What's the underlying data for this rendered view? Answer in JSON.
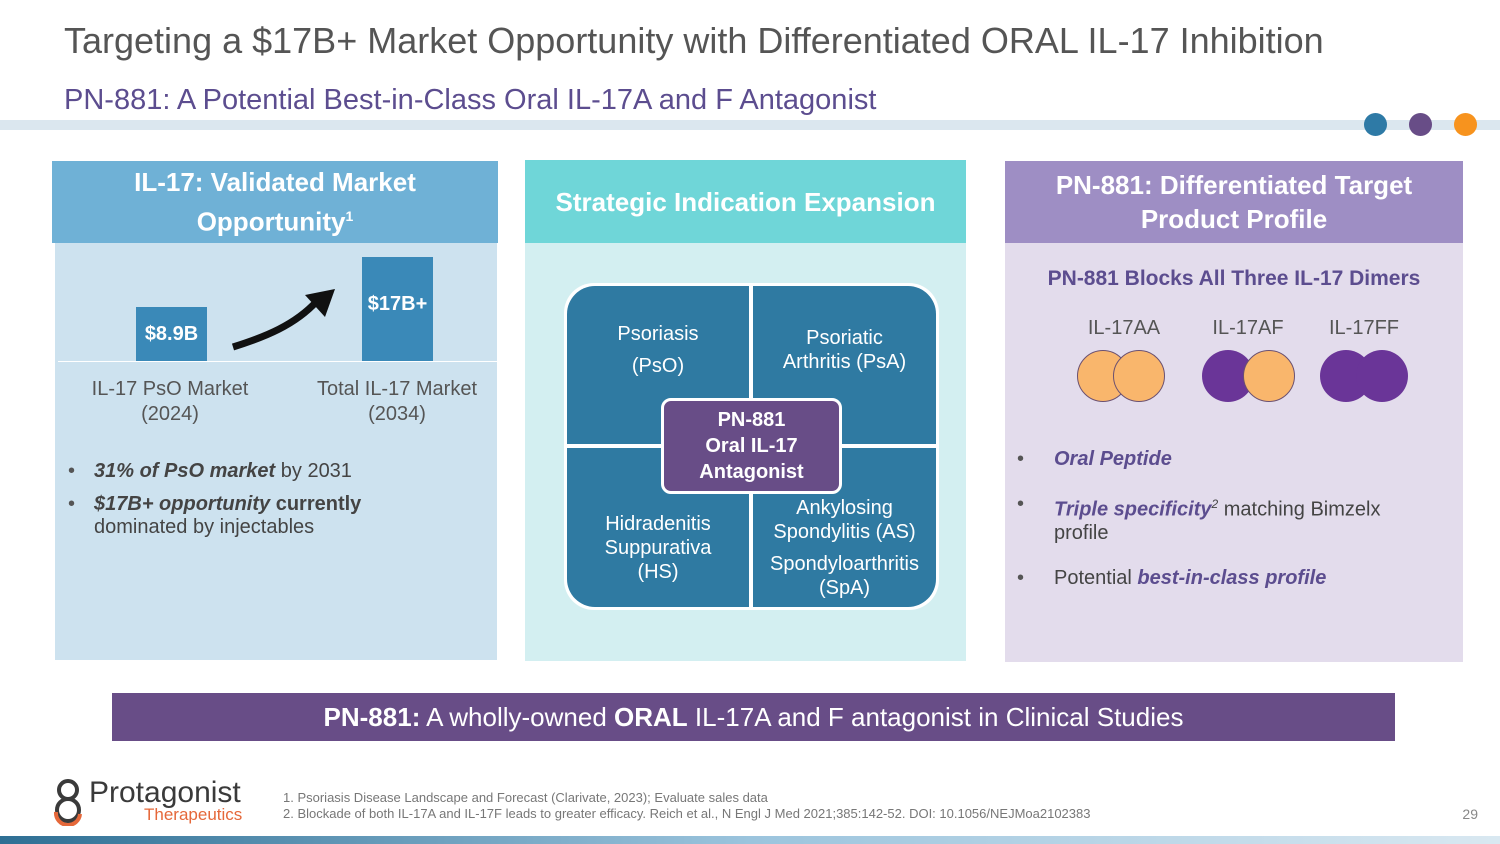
{
  "header": {
    "title": "Targeting a $17B+ Market Opportunity with Differentiated ORAL IL-17 Inhibition",
    "subtitle": "PN-881: A Potential Best-in-Class Oral IL-17A and F Antagonist"
  },
  "colors": {
    "blue": "#3a89b8",
    "teal": "#6fd6d8",
    "purple": "#684d87",
    "orange": "#f9b66c",
    "dot1": "#3a89b8",
    "dot2": "#684d87",
    "dot3": "#f7931e"
  },
  "panel1": {
    "heading_line1": "IL-17: Validated Market",
    "heading_line2": "Opportunity",
    "heading_sup": "1",
    "bar1_label": "$8.9B",
    "bar2_label": "$17B+",
    "axis1_line1": "IL-17 PsO Market",
    "axis1_line2": "(2024)",
    "axis2_line1": "Total IL-17 Market",
    "axis2_line2": "(2034)",
    "bullet1_em": "31% of PsO market",
    "bullet1_rest": " by 2031",
    "bullet2_em": "$17B+ opportunity",
    "bullet2_bold": " currently",
    "bullet2_rest": "dominated by injectables"
  },
  "chart_data": {
    "type": "bar",
    "categories": [
      "IL-17 PsO Market (2024)",
      "Total IL-17 Market (2034)"
    ],
    "values": [
      8.9,
      17
    ],
    "data_labels": [
      "$8.9B",
      "$17B+"
    ],
    "title": "",
    "xlabel": "",
    "ylabel": "",
    "ylim": [
      0,
      18
    ]
  },
  "panel2": {
    "heading": "Strategic Indication Expansion",
    "q1_line1": "Psoriasis",
    "q1_line2": "(PsO)",
    "q2_line1": "Psoriatic",
    "q2_line2": "Arthritis (PsA)",
    "q3_line1": "Hidradenitis",
    "q3_line2": "Suppurativa",
    "q3_line3": "(HS)",
    "q4_line1": "Ankylosing",
    "q4_line2": "Spondylitis (AS)",
    "q4_line3": "Spondyloarthritis",
    "q4_line4": "(SpA)",
    "center_line1": "PN-881",
    "center_line2": "Oral IL-17",
    "center_line3": "Antagonist"
  },
  "panel3": {
    "heading_line1": "PN-881: Differentiated Target",
    "heading_line2": "Product Profile",
    "subheading": "PN-881 Blocks All Three IL-17 Dimers",
    "dimers": [
      "IL-17AA",
      "IL-17AF",
      "IL-17FF"
    ],
    "bullet1_em": "Oral Peptide",
    "bullet2_em": "Triple specificity",
    "bullet2_sup": "2",
    "bullet2_rest": " matching Bimzelx",
    "bullet2_rest2": "profile",
    "bullet3_pre": "Potential ",
    "bullet3_em": "best-in-class profile"
  },
  "banner": {
    "bold1": "PN-881:",
    "text1": " A wholly-owned ",
    "bold2": "ORAL",
    "text2": " IL-17A and F antagonist in Clinical Studies"
  },
  "footer": {
    "logo_name": "Protagonist",
    "logo_sub": "Therapeutics",
    "footnote1": "1. Psoriasis Disease Landscape and Forecast (Clarivate, 2023); Evaluate sales data",
    "footnote2": "2. Blockade of both IL-17A and IL-17F leads to greater efficacy. Reich et al., N Engl J Med 2021;385:142-52. DOI: 10.1056/NEJMoa2102383",
    "page_number": "29"
  }
}
